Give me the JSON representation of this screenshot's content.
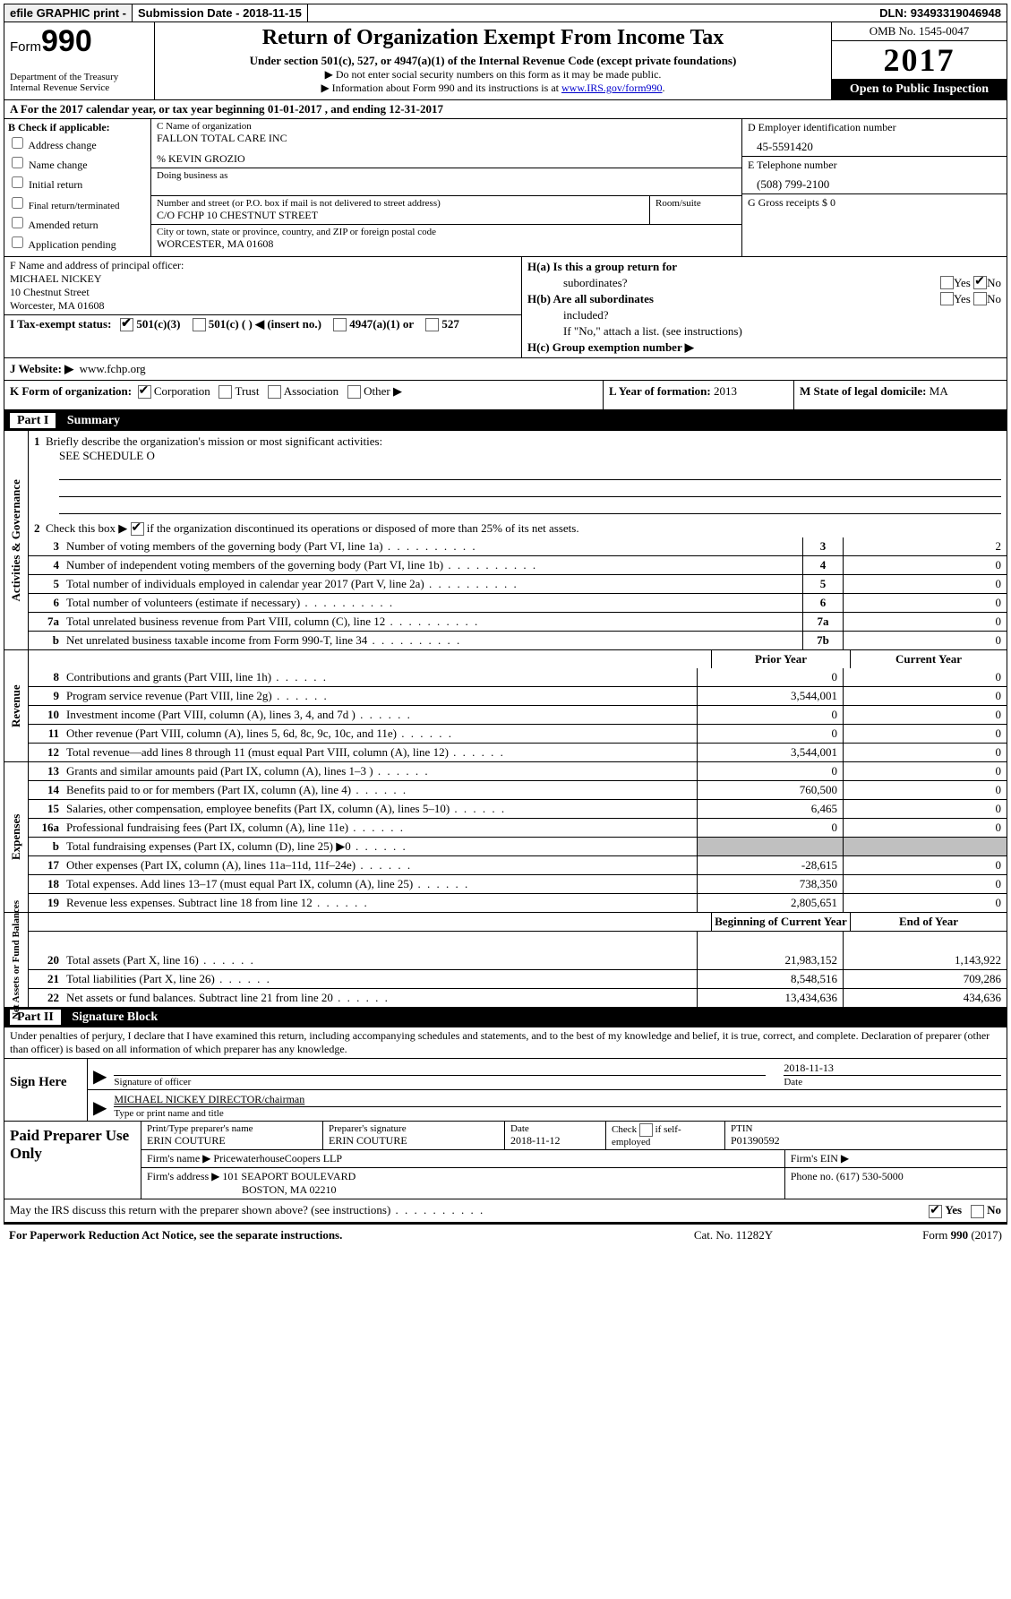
{
  "topbar": {
    "efile": "efile GRAPHIC print -",
    "subdate_label": "Submission Date -",
    "subdate_value": "2018-11-15",
    "dln_label": "DLN:",
    "dln_value": "93493319046948"
  },
  "header": {
    "form_word": "Form",
    "form_no": "990",
    "dept1": "Department of the Treasury",
    "dept2": "Internal Revenue Service",
    "title": "Return of Organization Exempt From Income Tax",
    "subtitle": "Under section 501(c), 527, or 4947(a)(1) of the Internal Revenue Code (except private foundations)",
    "warn1": "▶ Do not enter social security numbers on this form as it may be made public.",
    "warn2_a": "▶ Information about Form 990 and its instructions is at ",
    "warn2_link": "www.IRS.gov/form990",
    "omb": "OMB No. 1545-0047",
    "year": "2017",
    "open": "Open to Public Inspection"
  },
  "section_a": {
    "text_a": "A  For the 2017 calendar year, or tax year beginning ",
    "begin": "01-01-2017",
    "text_b": "   , and ending ",
    "end": "12-31-2017"
  },
  "col_b": {
    "header": "B Check if applicable:",
    "opts": [
      "Address change",
      "Name change",
      "Initial return",
      "Final return/terminated",
      "Amended return",
      "Application pending"
    ]
  },
  "col_c": {
    "name_label": "C Name of organization",
    "name_value": "FALLON TOTAL CARE INC",
    "care_of": "% KEVIN GROZIO",
    "dba_label": "Doing business as",
    "street_label": "Number and street (or P.O. box if mail is not delivered to street address)",
    "street_value": "C/O FCHP 10 CHESTNUT STREET",
    "room_label": "Room/suite",
    "city_label": "City or town, state or province, country, and ZIP or foreign postal code",
    "city_value": "WORCESTER, MA  01608"
  },
  "col_d": {
    "ein_label": "D Employer identification number",
    "ein_value": "45-5591420",
    "tel_label": "E Telephone number",
    "tel_value": "(508) 799-2100",
    "gross_label": "G Gross receipts $",
    "gross_value": "0"
  },
  "col_f": {
    "label": "F Name and address of principal officer:",
    "name": "MICHAEL NICKEY",
    "addr1": "10 Chestnut Street",
    "addr2": "Worcester, MA  01608"
  },
  "tax": {
    "label": "I  Tax-exempt status:",
    "o1": "501(c)(3)",
    "o2": "501(c) (   ) ◀ (insert no.)",
    "o3": "4947(a)(1) or",
    "o4": "527"
  },
  "website": {
    "label": "J  Website: ▶",
    "value": "www.fchp.org"
  },
  "h": {
    "a_label_1": "H(a)  Is this a group return for",
    "a_label_2": "subordinates?",
    "b_label_1": "H(b)  Are all subordinates",
    "b_label_2": "included?",
    "note": "If \"No,\" attach a list. (see instructions)",
    "c_label": "H(c)  Group exemption number ▶",
    "yes": "Yes",
    "no": "No"
  },
  "klm": {
    "k_label": "K Form of organization:",
    "k_opts": [
      "Corporation",
      "Trust",
      "Association",
      "Other ▶"
    ],
    "l_label": "L Year of formation:",
    "l_value": "2013",
    "m_label": "M State of legal domicile:",
    "m_value": "MA"
  },
  "part1": {
    "title": "Summary",
    "part_label": "Part I",
    "side1": "Activities & Governance",
    "side2": "Revenue",
    "side3": "Expenses",
    "side4": "Net Assets or Fund Balances",
    "q1": "Briefly describe the organization's mission or most significant activities:",
    "q1_val": "SEE SCHEDULE O",
    "q2": "Check this box ▶        if the organization discontinued its operations or disposed of more than 25% of its net assets.",
    "prior_year": "Prior Year",
    "current_year": "Current Year",
    "boy": "Beginning of Current Year",
    "eoy": "End of Year",
    "rows_ag": [
      {
        "n": "3",
        "d": "Number of voting members of the governing body (Part VI, line 1a)",
        "b": "3",
        "v": "2"
      },
      {
        "n": "4",
        "d": "Number of independent voting members of the governing body (Part VI, line 1b)",
        "b": "4",
        "v": "0"
      },
      {
        "n": "5",
        "d": "Total number of individuals employed in calendar year 2017 (Part V, line 2a)",
        "b": "5",
        "v": "0"
      },
      {
        "n": "6",
        "d": "Total number of volunteers (estimate if necessary)",
        "b": "6",
        "v": "0"
      },
      {
        "n": "7a",
        "d": "Total unrelated business revenue from Part VIII, column (C), line 12",
        "b": "7a",
        "v": "0"
      },
      {
        "n": "b",
        "d": "Net unrelated business taxable income from Form 990-T, line 34",
        "b": "7b",
        "v": "0"
      }
    ],
    "rows_rev": [
      {
        "n": "8",
        "d": "Contributions and grants (Part VIII, line 1h)",
        "py": "0",
        "cy": "0"
      },
      {
        "n": "9",
        "d": "Program service revenue (Part VIII, line 2g)",
        "py": "3,544,001",
        "cy": "0"
      },
      {
        "n": "10",
        "d": "Investment income (Part VIII, column (A), lines 3, 4, and 7d )",
        "py": "0",
        "cy": "0"
      },
      {
        "n": "11",
        "d": "Other revenue (Part VIII, column (A), lines 5, 6d, 8c, 9c, 10c, and 11e)",
        "py": "0",
        "cy": "0"
      },
      {
        "n": "12",
        "d": "Total revenue—add lines 8 through 11 (must equal Part VIII, column (A), line 12)",
        "py": "3,544,001",
        "cy": "0"
      }
    ],
    "rows_exp": [
      {
        "n": "13",
        "d": "Grants and similar amounts paid (Part IX, column (A), lines 1–3 )",
        "py": "0",
        "cy": "0"
      },
      {
        "n": "14",
        "d": "Benefits paid to or for members (Part IX, column (A), line 4)",
        "py": "760,500",
        "cy": "0"
      },
      {
        "n": "15",
        "d": "Salaries, other compensation, employee benefits (Part IX, column (A), lines 5–10)",
        "py": "6,465",
        "cy": "0"
      },
      {
        "n": "16a",
        "d": "Professional fundraising fees (Part IX, column (A), line 11e)",
        "py": "0",
        "cy": "0"
      },
      {
        "n": "b",
        "d": "Total fundraising expenses (Part IX, column (D), line 25) ▶0",
        "py": "",
        "cy": "",
        "grey": true
      },
      {
        "n": "17",
        "d": "Other expenses (Part IX, column (A), lines 11a–11d, 11f–24e)",
        "py": "-28,615",
        "cy": "0"
      },
      {
        "n": "18",
        "d": "Total expenses. Add lines 13–17 (must equal Part IX, column (A), line 25)",
        "py": "738,350",
        "cy": "0"
      },
      {
        "n": "19",
        "d": "Revenue less expenses. Subtract line 18 from line 12",
        "py": "2,805,651",
        "cy": "0"
      }
    ],
    "rows_net": [
      {
        "n": "20",
        "d": "Total assets (Part X, line 16)",
        "py": "21,983,152",
        "cy": "1,143,922"
      },
      {
        "n": "21",
        "d": "Total liabilities (Part X, line 26)",
        "py": "8,548,516",
        "cy": "709,286"
      },
      {
        "n": "22",
        "d": "Net assets or fund balances. Subtract line 21 from line 20",
        "py": "13,434,636",
        "cy": "434,636"
      }
    ]
  },
  "part2": {
    "part_label": "Part II",
    "title": "Signature Block",
    "intro": "Under penalties of perjury, I declare that I have examined this return, including accompanying schedules and statements, and to the best of my knowledge and belief, it is true, correct, and complete. Declaration of preparer (other than officer) is based on all information of which preparer has any knowledge.",
    "sign_here": "Sign Here",
    "sig_officer": "Signature of officer",
    "date_label": "Date",
    "sig_date": "2018-11-13",
    "name_title": "MICHAEL NICKEY DIRECTOR/chairman",
    "name_title_label": "Type or print name and title",
    "paid_label": "Paid Preparer Use Only",
    "prep_name_label": "Print/Type preparer's name",
    "prep_name": "ERIN COUTURE",
    "prep_sig_label": "Preparer's signature",
    "prep_sig": "ERIN COUTURE",
    "prep_date_label": "Date",
    "prep_date": "2018-11-12",
    "self_emp": "Check           if self-employed",
    "ptin_label": "PTIN",
    "ptin": "P01390592",
    "firm_name_label": "Firm's name      ▶",
    "firm_name": "PricewaterhouseCoopers LLP",
    "firm_ein_label": "Firm's EIN ▶",
    "firm_addr_label": "Firm's address ▶",
    "firm_addr1": "101 SEAPORT BOULEVARD",
    "firm_addr2": "BOSTON, MA  02210",
    "phone_label": "Phone no.",
    "phone": "(617) 530-5000",
    "discuss": "May the IRS discuss this return with the preparer shown above? (see instructions)"
  },
  "footer": {
    "left": "For Paperwork Reduction Act Notice, see the separate instructions.",
    "mid": "Cat. No. 11282Y",
    "right": "Form 990 (2017)"
  },
  "colors": {
    "black": "#000000",
    "white": "#ffffff",
    "grey": "#c0c0c0",
    "link": "#0000cc"
  }
}
